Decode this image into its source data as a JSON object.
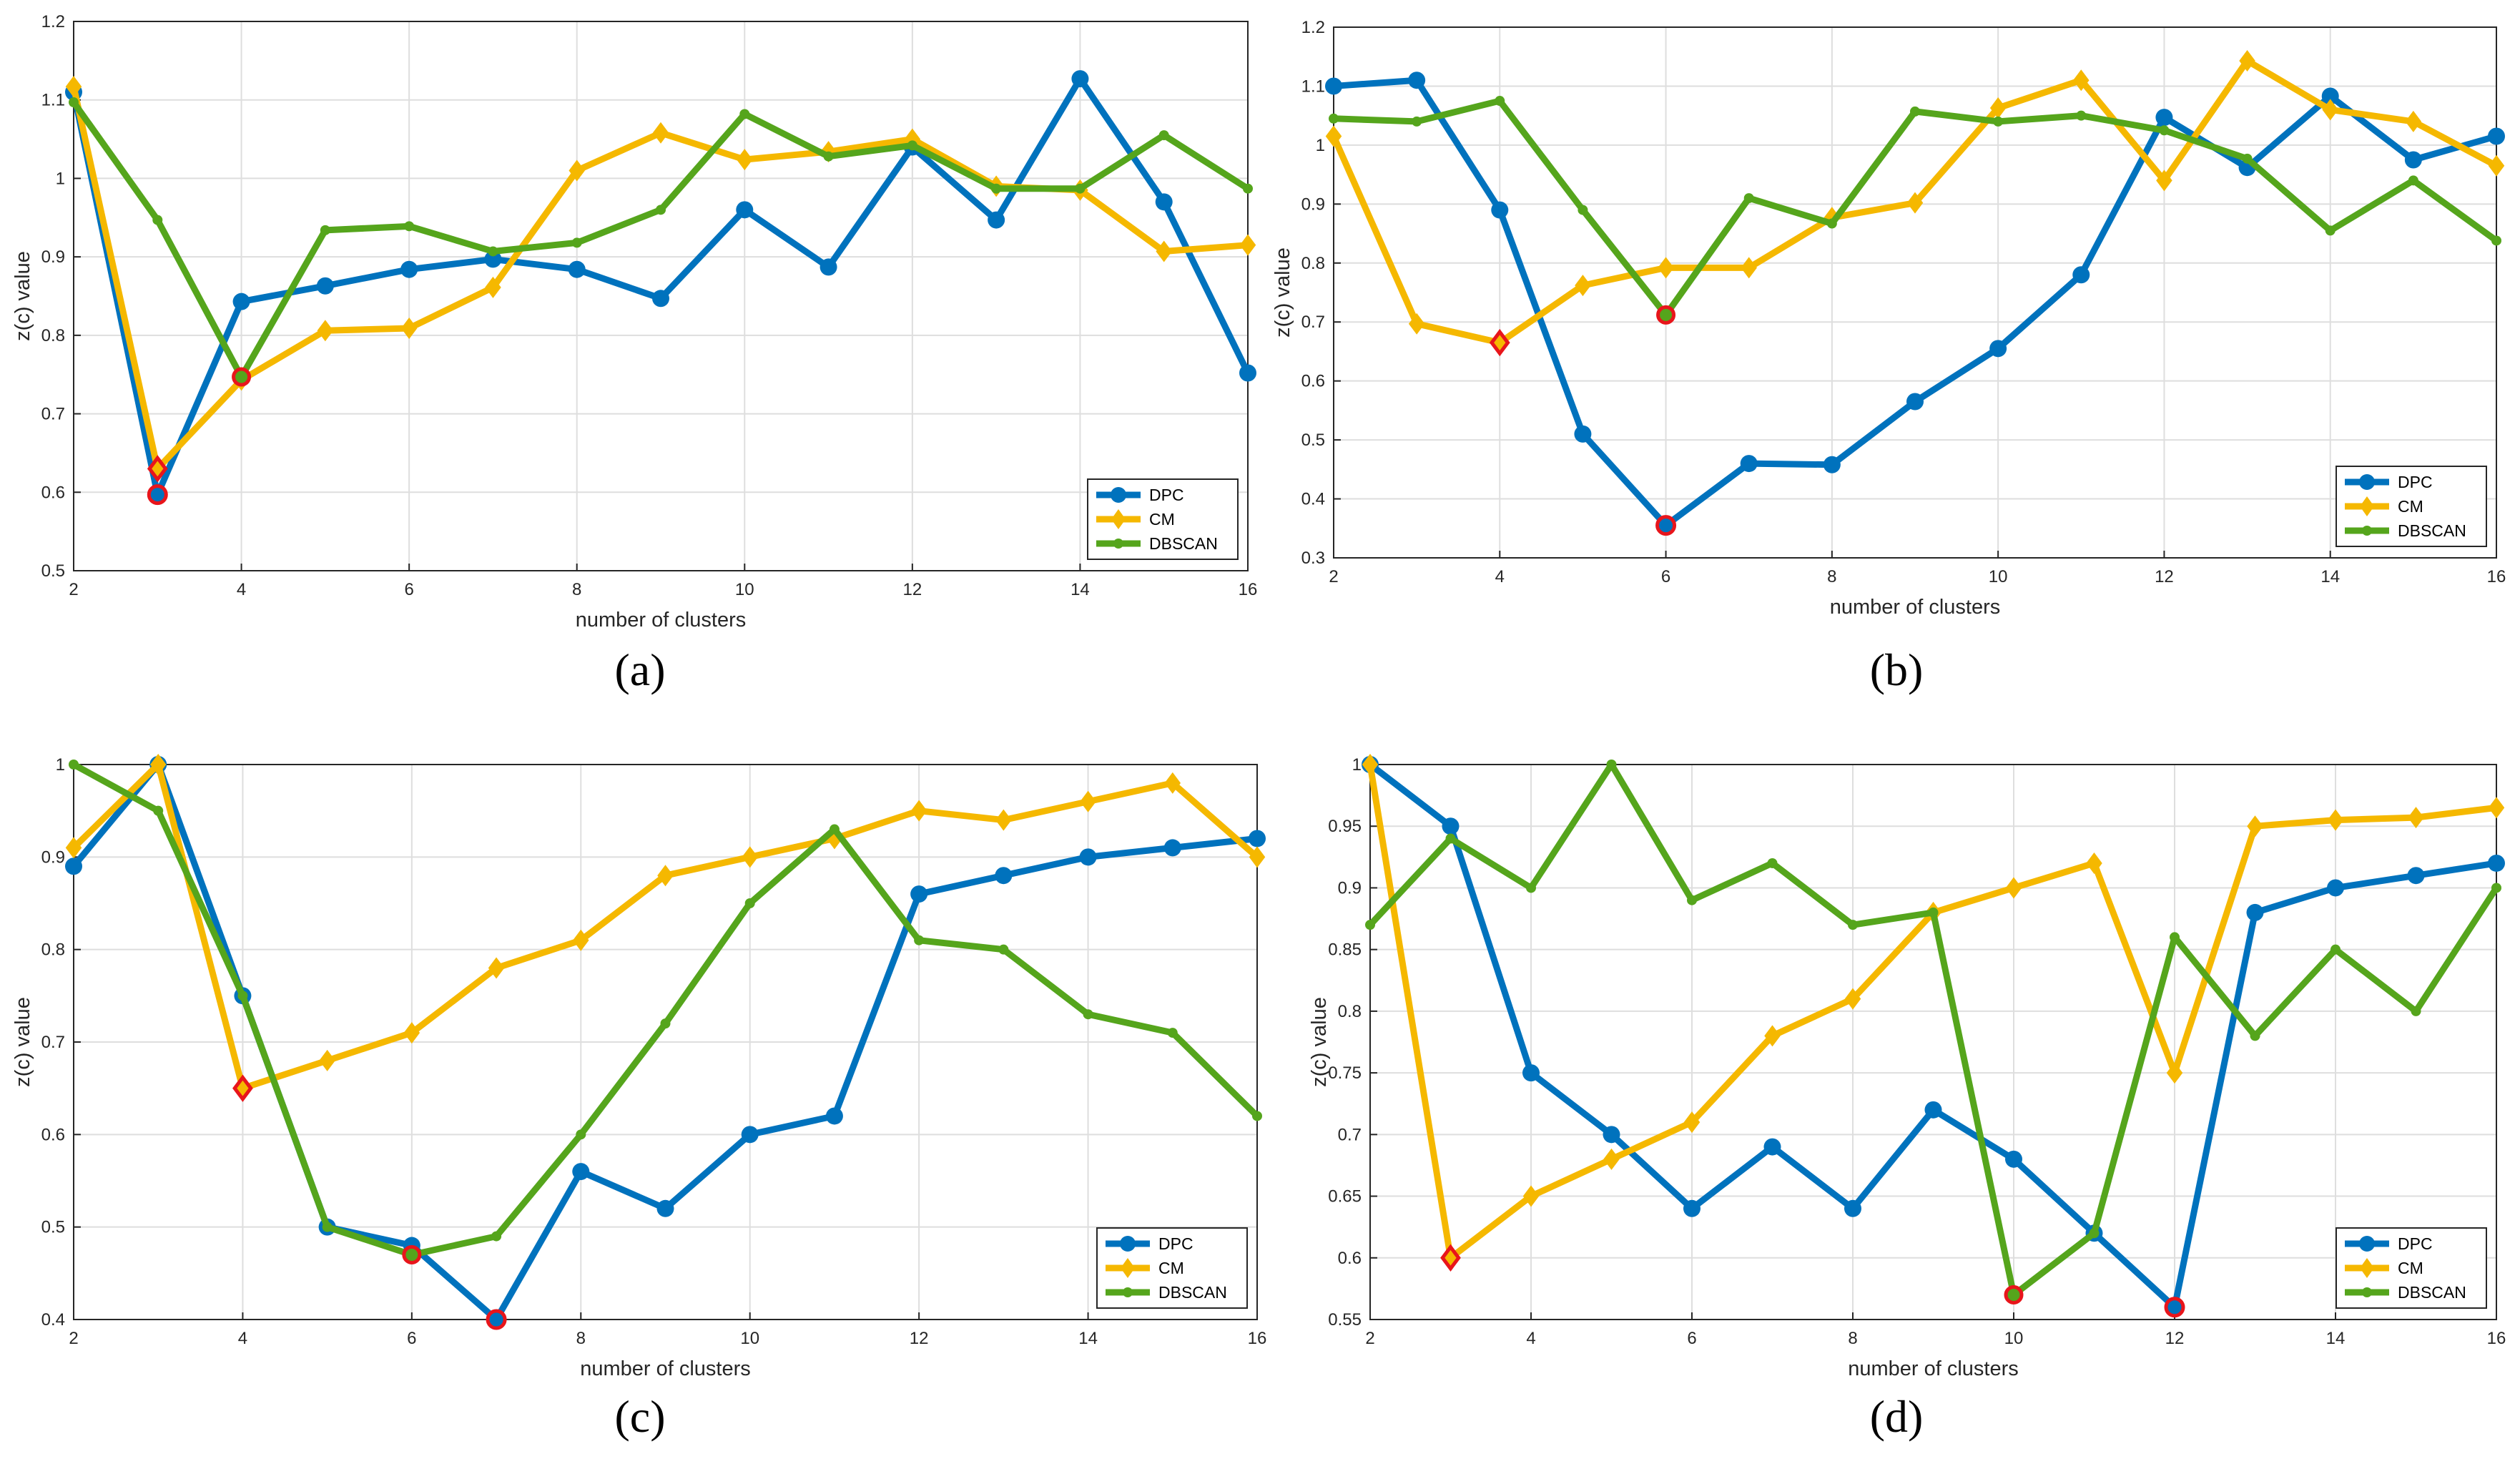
{
  "colors": {
    "DPC": "#0072BD",
    "CM": "#F5B800",
    "DBSCAN": "#55A51C",
    "highlight": "#E8151B"
  },
  "chart_data": [
    {
      "type": "line",
      "caption": "(a)",
      "xlabel": "number of clusters",
      "ylabel": "z(c) value",
      "xlim": [
        2,
        16
      ],
      "ylim": [
        0.5,
        1.2
      ],
      "xticks": [
        2,
        4,
        6,
        8,
        10,
        12,
        14,
        16
      ],
      "yticks": [
        0.5,
        0.6,
        0.7,
        0.8,
        0.9,
        1,
        1.1,
        1.2
      ],
      "grid": true,
      "legend_position": "bottom-right",
      "x": [
        2,
        3,
        4,
        5,
        6,
        7,
        8,
        9,
        10,
        11,
        12,
        13,
        14,
        15,
        16
      ],
      "series": [
        {
          "name": "DPC",
          "marker": "circle",
          "values": [
            1.11,
            0.597,
            0.843,
            0.863,
            0.884,
            0.897,
            0.884,
            0.847,
            0.96,
            0.887,
            1.04,
            0.947,
            1.127,
            0.97,
            0.752
          ],
          "highlight_index": 1
        },
        {
          "name": "CM",
          "marker": "diamond",
          "values": [
            1.117,
            0.63,
            0.743,
            0.806,
            0.809,
            0.861,
            1.01,
            1.058,
            1.024,
            1.034,
            1.05,
            0.99,
            0.985,
            0.907,
            0.915
          ],
          "highlight_index": 1
        },
        {
          "name": "DBSCAN",
          "marker": "dot",
          "values": [
            1.097,
            0.947,
            0.747,
            0.934,
            0.939,
            0.907,
            0.918,
            0.96,
            1.082,
            1.028,
            1.042,
            0.987,
            0.987,
            1.055,
            0.987
          ],
          "highlight_index": 2
        }
      ]
    },
    {
      "type": "line",
      "caption": "(b)",
      "xlabel": "number of clusters",
      "ylabel": "z(c) value",
      "xlim": [
        2,
        16
      ],
      "ylim": [
        0.3,
        1.2
      ],
      "xticks": [
        2,
        4,
        6,
        8,
        10,
        12,
        14,
        16
      ],
      "yticks": [
        0.3,
        0.4,
        0.5,
        0.6,
        0.7,
        0.8,
        0.9,
        1,
        1.1,
        1.2
      ],
      "grid": true,
      "legend_position": "bottom-right",
      "x": [
        2,
        3,
        4,
        5,
        6,
        7,
        8,
        9,
        10,
        11,
        12,
        13,
        14,
        15,
        16
      ],
      "series": [
        {
          "name": "DPC",
          "marker": "circle",
          "values": [
            1.1,
            1.11,
            0.89,
            0.51,
            0.355,
            0.46,
            0.458,
            0.565,
            0.655,
            0.78,
            1.047,
            0.962,
            1.083,
            0.975,
            1.015
          ],
          "highlight_index": 4
        },
        {
          "name": "CM",
          "marker": "diamond",
          "values": [
            1.015,
            0.697,
            0.665,
            0.762,
            0.792,
            0.792,
            0.877,
            0.902,
            1.063,
            1.11,
            0.94,
            1.143,
            1.06,
            1.04,
            0.965
          ],
          "highlight_index": 2
        },
        {
          "name": "DBSCAN",
          "marker": "dot",
          "values": [
            1.045,
            1.04,
            1.075,
            0.89,
            0.712,
            0.91,
            0.867,
            1.057,
            1.04,
            1.05,
            1.025,
            0.977,
            0.855,
            0.94,
            0.838
          ],
          "highlight_index": 4
        }
      ]
    },
    {
      "type": "line",
      "caption": "(c)",
      "xlabel": "number of clusters",
      "ylabel": "z(c) value",
      "xlim": [
        2,
        16
      ],
      "ylim": [
        0.4,
        1
      ],
      "xticks": [
        2,
        4,
        6,
        8,
        10,
        12,
        14,
        16
      ],
      "yticks": [
        0.4,
        0.5,
        0.6,
        0.7,
        0.8,
        0.9,
        1
      ],
      "grid": true,
      "legend_position": "bottom-right",
      "x": [
        2,
        3,
        4,
        5,
        6,
        7,
        8,
        9,
        10,
        11,
        12,
        13,
        14,
        15,
        16
      ],
      "series": [
        {
          "name": "DPC",
          "marker": "circle",
          "values": [
            0.89,
            1.0,
            0.75,
            0.5,
            0.48,
            0.4,
            0.56,
            0.52,
            0.6,
            0.62,
            0.86,
            0.88,
            0.9,
            0.91,
            0.92
          ],
          "highlight_index": 5
        },
        {
          "name": "CM",
          "marker": "diamond",
          "values": [
            0.91,
            1.0,
            0.65,
            0.68,
            0.71,
            0.78,
            0.81,
            0.88,
            0.9,
            0.92,
            0.95,
            0.94,
            0.96,
            0.98,
            0.9
          ],
          "highlight_index": 2
        },
        {
          "name": "DBSCAN",
          "marker": "dot",
          "values": [
            1.0,
            0.95,
            0.75,
            0.5,
            0.47,
            0.49,
            0.6,
            0.72,
            0.85,
            0.93,
            0.81,
            0.8,
            0.73,
            0.71,
            0.62
          ],
          "highlight_index": 4
        }
      ]
    },
    {
      "type": "line",
      "caption": "(d)",
      "xlabel": "number of clusters",
      "ylabel": "z(c) value",
      "xlim": [
        2,
        16
      ],
      "ylim": [
        0.55,
        1
      ],
      "xticks": [
        2,
        4,
        6,
        8,
        10,
        12,
        14,
        16
      ],
      "yticks": [
        0.55,
        0.6,
        0.65,
        0.7,
        0.75,
        0.8,
        0.85,
        0.9,
        0.95,
        1
      ],
      "grid": true,
      "legend_position": "bottom-right",
      "x": [
        2,
        3,
        4,
        5,
        6,
        7,
        8,
        9,
        10,
        11,
        12,
        13,
        14,
        15,
        16
      ],
      "series": [
        {
          "name": "DPC",
          "marker": "circle",
          "values": [
            1.0,
            0.95,
            0.75,
            0.7,
            0.64,
            0.69,
            0.64,
            0.72,
            0.68,
            0.62,
            0.56,
            0.88,
            0.9,
            0.91,
            0.92
          ],
          "highlight_index": 10
        },
        {
          "name": "CM",
          "marker": "diamond",
          "values": [
            1.0,
            0.6,
            0.65,
            0.68,
            0.71,
            0.78,
            0.81,
            0.88,
            0.9,
            0.92,
            0.75,
            0.95,
            0.955,
            0.957,
            0.965
          ],
          "highlight_index": 1
        },
        {
          "name": "DBSCAN",
          "marker": "dot",
          "values": [
            0.87,
            0.94,
            0.9,
            1.0,
            0.89,
            0.92,
            0.87,
            0.88,
            0.57,
            0.62,
            0.86,
            0.78,
            0.85,
            0.8,
            0.9
          ],
          "highlight_index": 8
        }
      ]
    }
  ]
}
